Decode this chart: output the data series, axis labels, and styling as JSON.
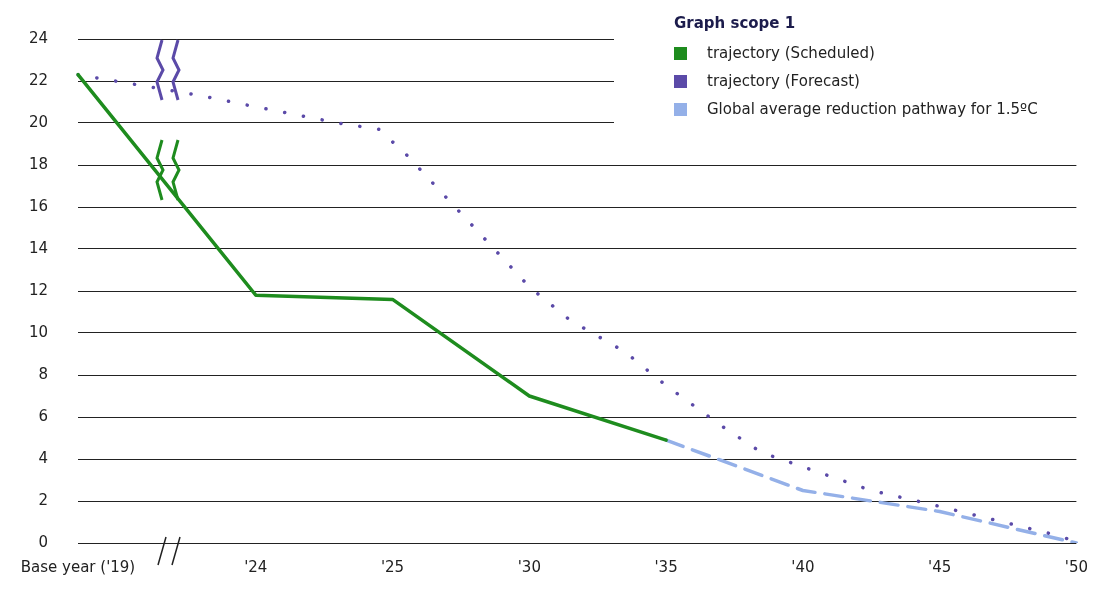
{
  "chart_data": {
    "type": "line",
    "legend_title": "Graph scope 1",
    "categories": [
      "Base year ('19)",
      null,
      null,
      null,
      null,
      null,
      null,
      null,
      null,
      null,
      null,
      null,
      null,
      "'24",
      null,
      null,
      null,
      null,
      null,
      null,
      null,
      null,
      null,
      "'25",
      null,
      null,
      null,
      null,
      null,
      null,
      null,
      null,
      null,
      "'30",
      null,
      null,
      null,
      null,
      null,
      null,
      null,
      null,
      null,
      "'35",
      null,
      null,
      null,
      null,
      null,
      null,
      null,
      null,
      null,
      "'40",
      null,
      null,
      null,
      null,
      null,
      null,
      null,
      null,
      null,
      "'45",
      null,
      null,
      null,
      null,
      null,
      null,
      null,
      null,
      null,
      "'50"
    ],
    "series": [
      {
        "name": "trajectory (Scheduled)",
        "color": "#1e8c1e",
        "line_style": "solid",
        "values": [
          22.3,
          null,
          null,
          null,
          null,
          null,
          null,
          null,
          null,
          null,
          null,
          null,
          null,
          11.8,
          null,
          null,
          null,
          null,
          null,
          null,
          null,
          null,
          null,
          11.6,
          null,
          null,
          null,
          null,
          null,
          null,
          null,
          null,
          null,
          7.0,
          null,
          null,
          null,
          null,
          null,
          null,
          null,
          null,
          null,
          4.9,
          null,
          null,
          null,
          null,
          null,
          null,
          null,
          null,
          null,
          null,
          null,
          null,
          null,
          null,
          null,
          null,
          null,
          null,
          null,
          null,
          null,
          null,
          null,
          null,
          null,
          null,
          null,
          null,
          null,
          null
        ]
      },
      {
        "name": "trajectory (Forecast)",
        "color": "#5b4aa8",
        "line_style": "dotted",
        "values": [
          22.3,
          null,
          null,
          null,
          null,
          null,
          null,
          null,
          null,
          21.3,
          null,
          null,
          20.9,
          null,
          null,
          null,
          null,
          null,
          null,
          20.0,
          null,
          null,
          19.7,
          null,
          18.5,
          null,
          null,
          16.4,
          null,
          null,
          14.3,
          null,
          null,
          12.2,
          null,
          null,
          10.6,
          null,
          null,
          null,
          9.1,
          null,
          null,
          7.5,
          null,
          null,
          null,
          5.6,
          null,
          null,
          4.3,
          null,
          null,
          null,
          3.4,
          null,
          null,
          null,
          2.5,
          null,
          null,
          null,
          1.9,
          null,
          null,
          null,
          null,
          1.1,
          null,
          null,
          null,
          null,
          0.3,
          0
        ]
      },
      {
        "name": "Global average reduction pathway for 1.5ºC",
        "color": "#94b0e8",
        "line_style": "dashed",
        "values": [
          null,
          null,
          null,
          null,
          null,
          null,
          null,
          null,
          null,
          null,
          null,
          null,
          null,
          null,
          null,
          null,
          null,
          null,
          null,
          null,
          null,
          null,
          null,
          null,
          null,
          null,
          null,
          null,
          null,
          null,
          null,
          null,
          null,
          null,
          null,
          null,
          null,
          null,
          null,
          null,
          null,
          null,
          null,
          4.9,
          null,
          null,
          null,
          null,
          null,
          null,
          null,
          null,
          null,
          2.5,
          null,
          null,
          null,
          null,
          null,
          null,
          null,
          null,
          null,
          1.5,
          null,
          null,
          null,
          null,
          null,
          null,
          null,
          null,
          null,
          0
        ]
      }
    ],
    "ylim": [
      0,
      24
    ],
    "yticks": [
      0,
      2,
      4,
      6,
      8,
      10,
      12,
      14,
      16,
      18,
      20,
      22,
      24
    ],
    "grid": "y",
    "legend": "top right",
    "marker": "none"
  }
}
